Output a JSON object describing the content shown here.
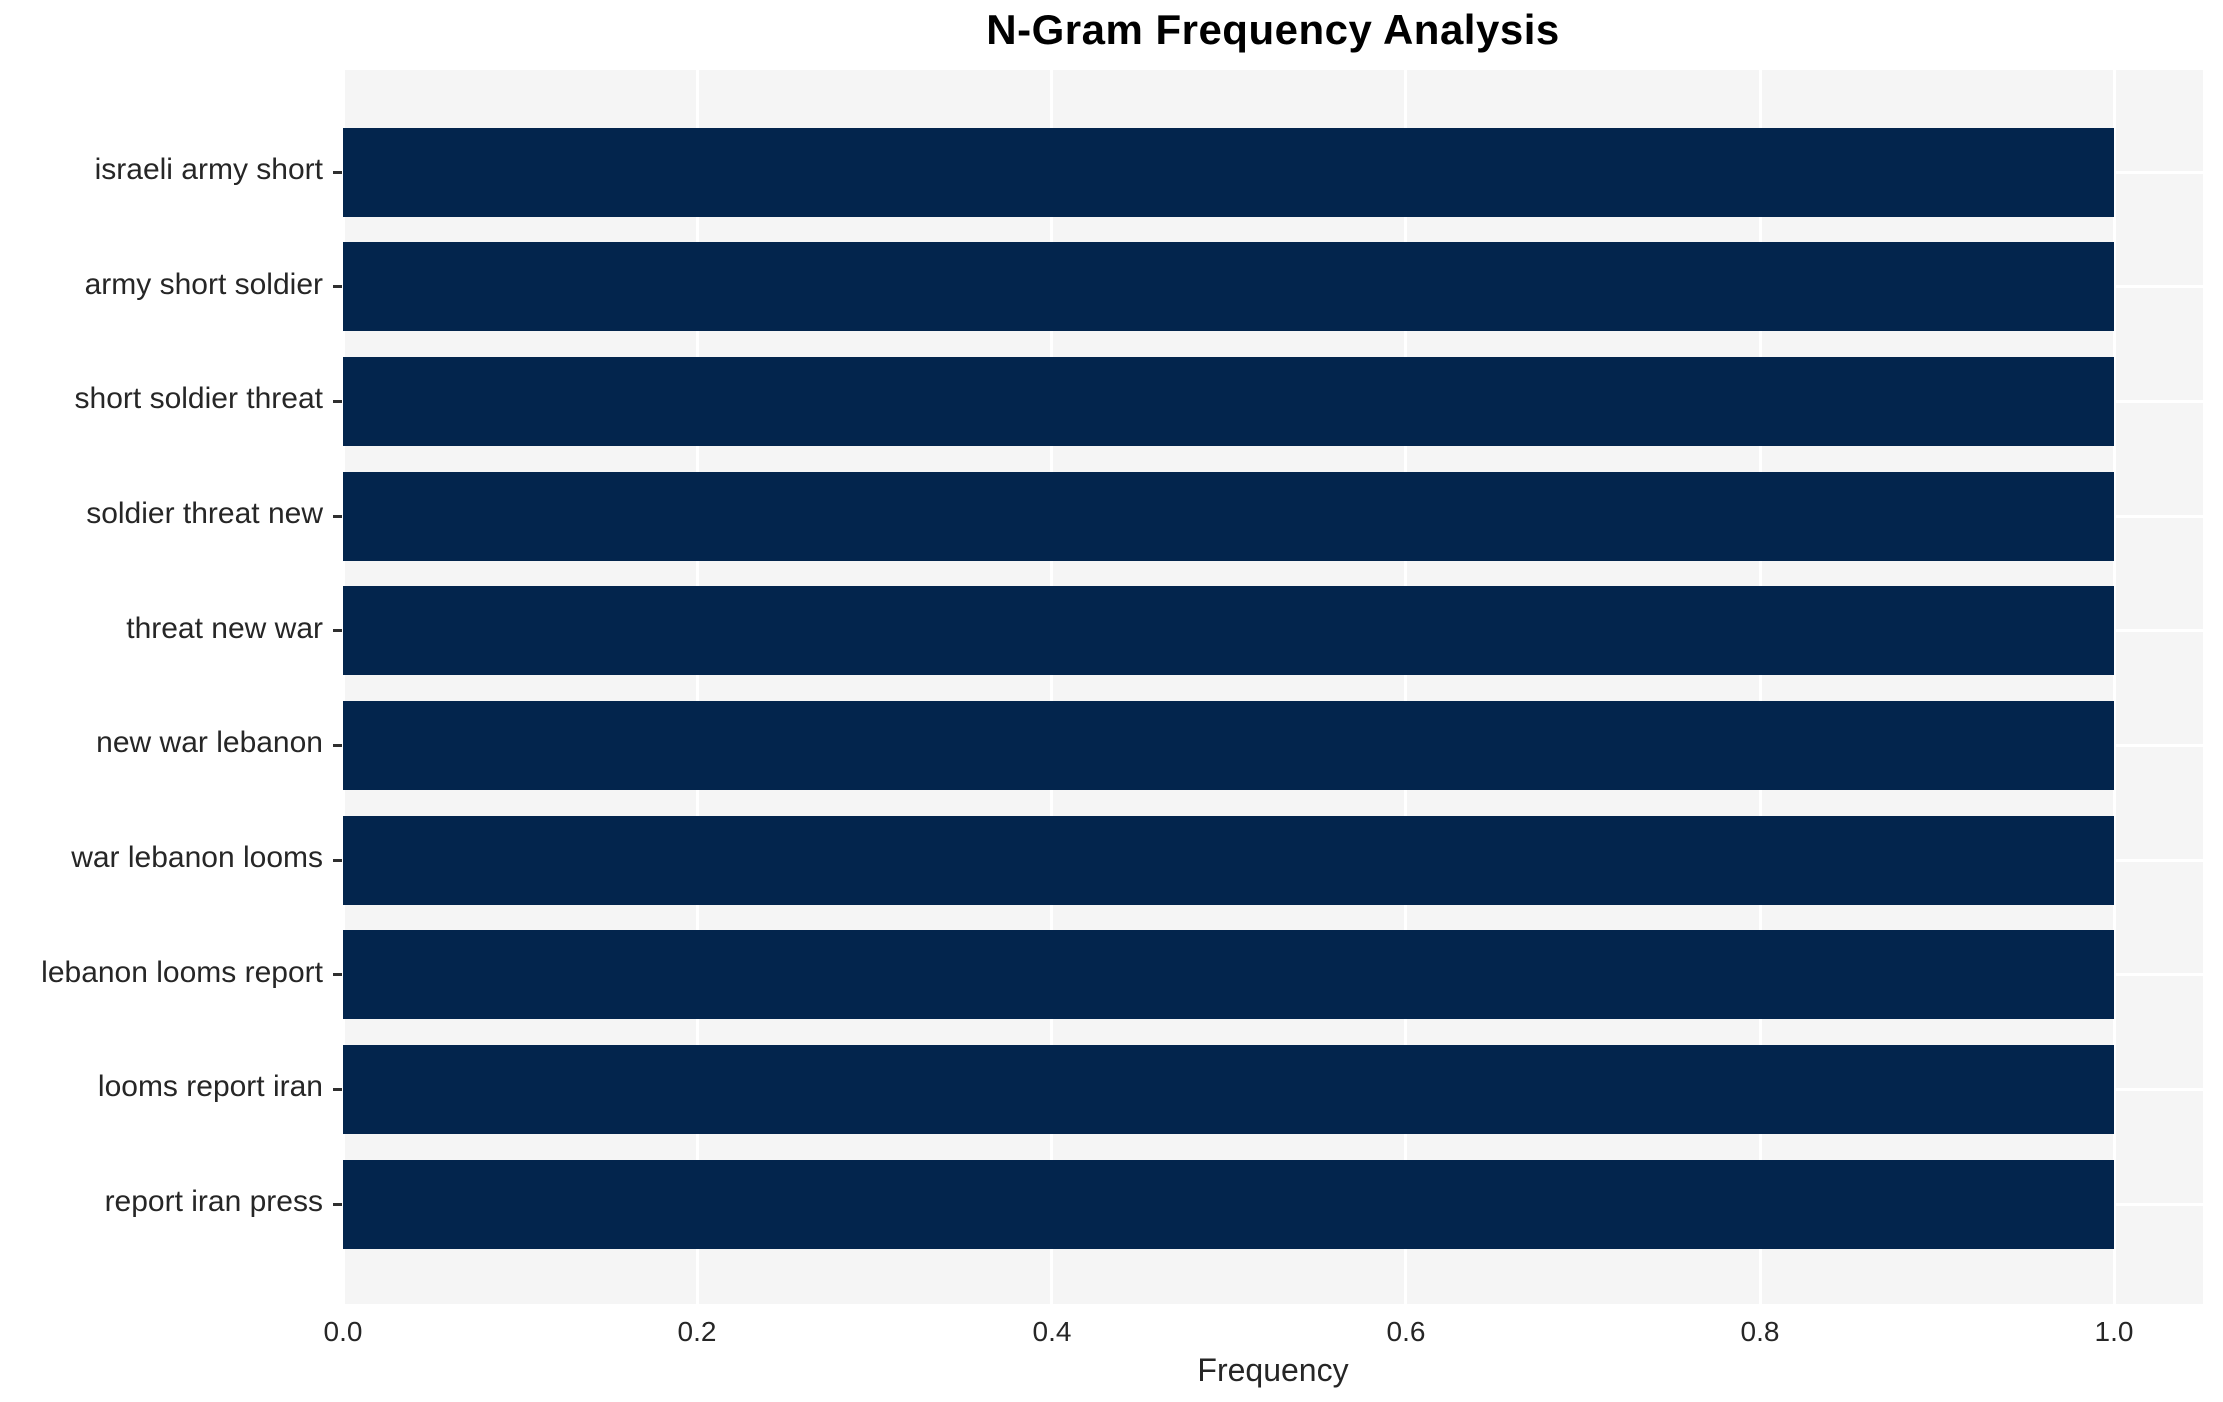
{
  "chart_data": {
    "type": "bar",
    "orientation": "horizontal",
    "title": "N-Gram Frequency Analysis",
    "categories": [
      "israeli army short",
      "army short soldier",
      "short soldier threat",
      "soldier threat new",
      "threat new war",
      "new war lebanon",
      "war lebanon looms",
      "lebanon looms report",
      "looms report iran",
      "report iran press"
    ],
    "values": [
      1.0,
      1.0,
      1.0,
      1.0,
      1.0,
      1.0,
      1.0,
      1.0,
      1.0,
      1.0
    ],
    "xlabel": "Frequency",
    "ylabel": "",
    "xlim": [
      0,
      1.05
    ],
    "xticks": [
      0.0,
      0.2,
      0.4,
      0.6,
      0.8,
      1.0
    ],
    "xtick_labels": [
      "0.0",
      "0.2",
      "0.4",
      "0.6",
      "0.8",
      "1.0"
    ],
    "grid": true,
    "legend": false,
    "colors": {
      "bar": "#03254d",
      "plot_bg": "#f5f5f5",
      "grid": "#ffffff",
      "text": "#262626",
      "title": "#000000"
    }
  }
}
